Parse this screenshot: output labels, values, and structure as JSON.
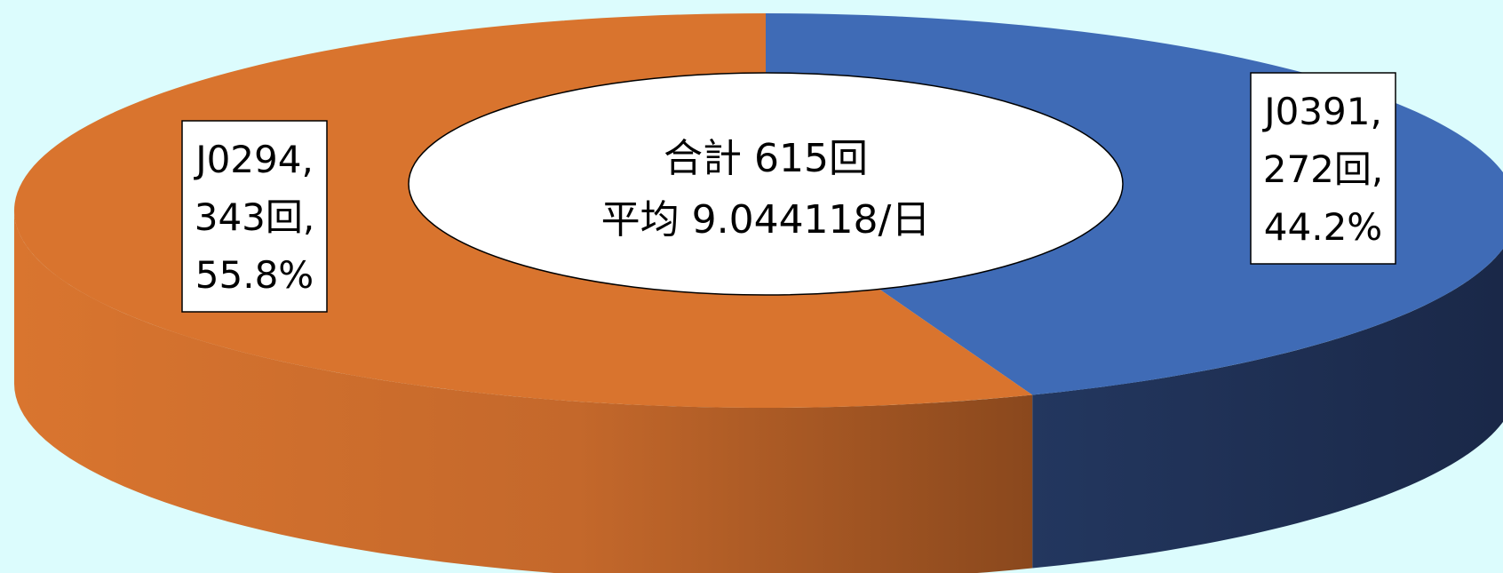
{
  "chart_data": {
    "type": "pie",
    "style": "3d-donut",
    "center_text": {
      "line1": "合計 615回",
      "line2": "平均 9.044118/日"
    },
    "slices": [
      {
        "category": "J0391",
        "value": 272,
        "percent_label": "44.2%",
        "unit": "回",
        "color": "#3f6bb6",
        "side_color": "#1e2f55"
      },
      {
        "category": "J0294",
        "value": 343,
        "percent_label": "55.8%",
        "unit": "回",
        "color": "#d9742e",
        "side_color": "#b0612a"
      }
    ],
    "labels": [
      {
        "lines": [
          "J0391,",
          "272回,",
          "44.2%"
        ]
      },
      {
        "lines": [
          "J0294,",
          "343回,",
          "55.8%"
        ]
      }
    ],
    "legend": "none"
  }
}
